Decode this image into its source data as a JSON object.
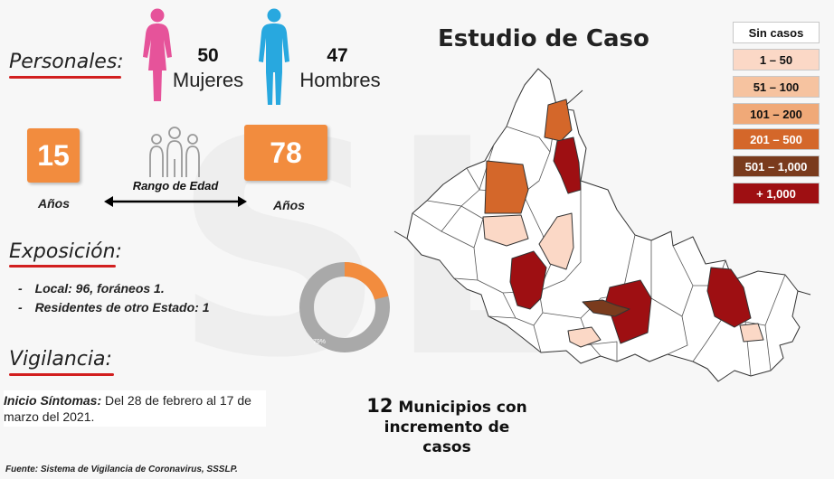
{
  "personales": {
    "title": "Personales:",
    "mujeres": {
      "count": "50",
      "label": "Mujeres"
    },
    "hombres": {
      "count": "47",
      "label": "Hombres"
    }
  },
  "edad": {
    "min": "15",
    "max": "78",
    "min_label": "Años",
    "max_label": "Años",
    "range_label": "Rango de Edad"
  },
  "exposicion": {
    "title": "Exposición:",
    "items": [
      {
        "dash": "-",
        "text": "Local:  96, foráneos 1."
      },
      {
        "dash": "-",
        "text": "Residentes de otro Estado: 1"
      }
    ]
  },
  "donut": {
    "percent_label": "79%",
    "gray_fraction": 0.79
  },
  "vigilancia": {
    "title": "Vigilancia:",
    "label": "Inicio Síntomas:",
    "text": " Del 28 de febrero al 17 de marzo del 2021."
  },
  "map": {
    "title": "Estudio de Caso",
    "legend": [
      {
        "label": "Sin casos",
        "color": "#ffffff",
        "text_color": "#111111"
      },
      {
        "label": "1 – 50",
        "color": "#fbd8c6",
        "text_color": "#111111"
      },
      {
        "label": "51 – 100",
        "color": "#f6c3a0",
        "text_color": "#111111"
      },
      {
        "label": "101 – 200",
        "color": "#f0a978",
        "text_color": "#111111"
      },
      {
        "label": "201 – 500",
        "color": "#d4672a",
        "text_color": "#ffffff"
      },
      {
        "label": "501 – 1,000",
        "color": "#7a3b1d",
        "text_color": "#ffffff"
      },
      {
        "label": "+ 1,000",
        "color": "#9e0f12",
        "text_color": "#ffffff"
      }
    ],
    "note_number": "12",
    "note_line1": " Municipios con",
    "note_line2": "incremento de",
    "note_line3": "casos"
  },
  "source": "Fuente: Sistema de Vigilancia de Coronavirus, SSSLP."
}
